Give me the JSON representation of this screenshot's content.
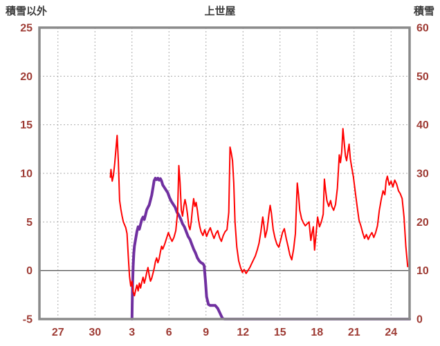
{
  "header": {
    "left_axis_title": "積雪以外",
    "title": "上世屋",
    "right_axis_title": "積雪"
  },
  "colors": {
    "background": "#ffffff",
    "temperature_line": "#ff0000",
    "snow_line": "#7030a0",
    "axis_label": "#9e3b34",
    "header_text": "#3b3b3b",
    "frame": "#8a8a8a",
    "grid": "#aaaaaa",
    "zero_line": "#5a5a5a"
  },
  "chart_data": {
    "type": "line",
    "title": "上世屋",
    "grid": true,
    "legend": "none",
    "left_axis": {
      "label": "積雪以外",
      "min": -5,
      "max": 25,
      "ticks": [
        -5,
        0,
        5,
        10,
        15,
        20,
        25
      ]
    },
    "right_axis": {
      "label": "積雪",
      "min": 0,
      "max": 60,
      "ticks": [
        0,
        10,
        20,
        30,
        40,
        50,
        60
      ]
    },
    "x_axis": {
      "range": [
        0,
        30
      ],
      "tick_positions": [
        1.5,
        4.5,
        7.5,
        10.5,
        13.5,
        16.5,
        19.5,
        22.5,
        25.5,
        28.5
      ],
      "tick_labels": [
        "27",
        "30",
        "3",
        "6",
        "9",
        "12",
        "15",
        "18",
        "21",
        "24"
      ]
    },
    "zero_line": 0,
    "series": [
      {
        "name": "積雪以外",
        "axis": "left",
        "color": "#ff0000",
        "width": 2,
        "points": [
          [
            5.75,
            9.6
          ],
          [
            5.8,
            10.4
          ],
          [
            5.9,
            9.2
          ],
          [
            6.0,
            9.8
          ],
          [
            6.1,
            11.0
          ],
          [
            6.2,
            12.5
          ],
          [
            6.3,
            13.9
          ],
          [
            6.4,
            11.2
          ],
          [
            6.5,
            7.2
          ],
          [
            6.6,
            6.3
          ],
          [
            6.7,
            5.6
          ],
          [
            6.8,
            5.0
          ],
          [
            6.9,
            4.7
          ],
          [
            7.0,
            4.4
          ],
          [
            7.1,
            3.8
          ],
          [
            7.2,
            1.5
          ],
          [
            7.3,
            -0.6
          ],
          [
            7.4,
            -1.6
          ],
          [
            7.5,
            -1.1
          ],
          [
            7.6,
            -2.2
          ],
          [
            7.7,
            -2.6
          ],
          [
            7.8,
            -2.0
          ],
          [
            7.9,
            -1.5
          ],
          [
            8.0,
            -2.1
          ],
          [
            8.1,
            -1.3
          ],
          [
            8.2,
            -1.8
          ],
          [
            8.3,
            -1.2
          ],
          [
            8.4,
            -0.7
          ],
          [
            8.5,
            -1.3
          ],
          [
            8.6,
            -0.8
          ],
          [
            8.7,
            -0.2
          ],
          [
            8.8,
            0.3
          ],
          [
            8.9,
            -0.5
          ],
          [
            9.0,
            -1.1
          ],
          [
            9.1,
            -0.8
          ],
          [
            9.2,
            -0.3
          ],
          [
            9.3,
            0.2
          ],
          [
            9.4,
            0.9
          ],
          [
            9.5,
            1.3
          ],
          [
            9.6,
            0.8
          ],
          [
            9.7,
            1.2
          ],
          [
            9.8,
            1.9
          ],
          [
            9.9,
            2.5
          ],
          [
            10.0,
            2.2
          ],
          [
            10.15,
            2.7
          ],
          [
            10.3,
            3.3
          ],
          [
            10.45,
            3.9
          ],
          [
            10.6,
            3.4
          ],
          [
            10.75,
            3.0
          ],
          [
            10.9,
            3.4
          ],
          [
            11.05,
            4.1
          ],
          [
            11.2,
            6.0
          ],
          [
            11.3,
            10.8
          ],
          [
            11.4,
            9.0
          ],
          [
            11.5,
            6.2
          ],
          [
            11.6,
            5.6
          ],
          [
            11.7,
            6.6
          ],
          [
            11.8,
            7.3
          ],
          [
            11.9,
            6.7
          ],
          [
            12.0,
            5.8
          ],
          [
            12.1,
            4.6
          ],
          [
            12.2,
            4.2
          ],
          [
            12.3,
            5.0
          ],
          [
            12.4,
            6.3
          ],
          [
            12.5,
            7.4
          ],
          [
            12.6,
            6.6
          ],
          [
            12.7,
            7.0
          ],
          [
            12.8,
            6.2
          ],
          [
            12.9,
            5.2
          ],
          [
            13.0,
            4.5
          ],
          [
            13.1,
            4.0
          ],
          [
            13.25,
            3.6
          ],
          [
            13.4,
            4.2
          ],
          [
            13.55,
            3.5
          ],
          [
            13.7,
            4.0
          ],
          [
            13.85,
            4.4
          ],
          [
            14.0,
            3.8
          ],
          [
            14.15,
            3.3
          ],
          [
            14.3,
            3.8
          ],
          [
            14.45,
            4.1
          ],
          [
            14.6,
            3.4
          ],
          [
            14.75,
            3.0
          ],
          [
            14.9,
            3.6
          ],
          [
            15.05,
            4.0
          ],
          [
            15.2,
            4.2
          ],
          [
            15.35,
            6.0
          ],
          [
            15.45,
            12.7
          ],
          [
            15.55,
            12.1
          ],
          [
            15.65,
            11.3
          ],
          [
            15.75,
            9.0
          ],
          [
            15.85,
            5.0
          ],
          [
            16.0,
            2.4
          ],
          [
            16.15,
            1.0
          ],
          [
            16.3,
            0.3
          ],
          [
            16.45,
            -0.2
          ],
          [
            16.6,
            0.1
          ],
          [
            16.75,
            -0.3
          ],
          [
            16.9,
            0.0
          ],
          [
            17.05,
            0.3
          ],
          [
            17.2,
            0.7
          ],
          [
            17.35,
            1.1
          ],
          [
            17.5,
            1.5
          ],
          [
            17.65,
            2.1
          ],
          [
            17.8,
            2.8
          ],
          [
            17.95,
            4.0
          ],
          [
            18.1,
            5.5
          ],
          [
            18.2,
            4.6
          ],
          [
            18.3,
            3.4
          ],
          [
            18.45,
            4.2
          ],
          [
            18.6,
            5.8
          ],
          [
            18.7,
            6.7
          ],
          [
            18.8,
            5.9
          ],
          [
            18.95,
            4.2
          ],
          [
            19.1,
            3.3
          ],
          [
            19.25,
            2.7
          ],
          [
            19.4,
            2.4
          ],
          [
            19.55,
            3.1
          ],
          [
            19.7,
            3.9
          ],
          [
            19.85,
            4.3
          ],
          [
            20.0,
            3.3
          ],
          [
            20.15,
            2.5
          ],
          [
            20.3,
            1.6
          ],
          [
            20.45,
            1.1
          ],
          [
            20.6,
            2.2
          ],
          [
            20.75,
            3.8
          ],
          [
            20.9,
            9.0
          ],
          [
            21.0,
            7.8
          ],
          [
            21.1,
            6.2
          ],
          [
            21.25,
            5.3
          ],
          [
            21.4,
            4.9
          ],
          [
            21.55,
            4.6
          ],
          [
            21.7,
            4.8
          ],
          [
            21.85,
            5.0
          ],
          [
            22.0,
            3.1
          ],
          [
            22.1,
            3.9
          ],
          [
            22.2,
            4.5
          ],
          [
            22.3,
            2.1
          ],
          [
            22.45,
            4.2
          ],
          [
            22.55,
            5.5
          ],
          [
            22.7,
            4.5
          ],
          [
            22.85,
            5.0
          ],
          [
            23.0,
            5.8
          ],
          [
            23.1,
            9.4
          ],
          [
            23.2,
            8.2
          ],
          [
            23.3,
            7.2
          ],
          [
            23.45,
            6.6
          ],
          [
            23.6,
            7.2
          ],
          [
            23.7,
            6.6
          ],
          [
            23.85,
            6.2
          ],
          [
            24.0,
            6.8
          ],
          [
            24.15,
            8.5
          ],
          [
            24.3,
            11.9
          ],
          [
            24.4,
            11.1
          ],
          [
            24.5,
            12.2
          ],
          [
            24.6,
            14.6
          ],
          [
            24.7,
            13.2
          ],
          [
            24.8,
            11.8
          ],
          [
            24.9,
            11.3
          ],
          [
            25.0,
            12.2
          ],
          [
            25.1,
            13.0
          ],
          [
            25.2,
            11.5
          ],
          [
            25.3,
            10.7
          ],
          [
            25.45,
            9.6
          ],
          [
            25.6,
            8.1
          ],
          [
            25.75,
            6.6
          ],
          [
            25.9,
            5.2
          ],
          [
            26.05,
            4.6
          ],
          [
            26.2,
            3.9
          ],
          [
            26.35,
            3.3
          ],
          [
            26.5,
            3.7
          ],
          [
            26.65,
            3.2
          ],
          [
            26.8,
            3.6
          ],
          [
            26.95,
            3.9
          ],
          [
            27.1,
            3.4
          ],
          [
            27.25,
            3.9
          ],
          [
            27.4,
            4.6
          ],
          [
            27.55,
            6.2
          ],
          [
            27.7,
            7.3
          ],
          [
            27.85,
            8.2
          ],
          [
            28.0,
            7.8
          ],
          [
            28.1,
            9.2
          ],
          [
            28.2,
            9.7
          ],
          [
            28.35,
            8.8
          ],
          [
            28.5,
            9.2
          ],
          [
            28.65,
            8.6
          ],
          [
            28.8,
            9.3
          ],
          [
            28.95,
            8.9
          ],
          [
            29.1,
            8.2
          ],
          [
            29.25,
            7.9
          ],
          [
            29.4,
            7.4
          ],
          [
            29.55,
            5.5
          ],
          [
            29.7,
            2.5
          ],
          [
            29.85,
            0.4
          ]
        ]
      },
      {
        "name": "積雪",
        "axis": "right",
        "color": "#7030a0",
        "width": 4,
        "points": [
          [
            7.5,
            0
          ],
          [
            7.52,
            3
          ],
          [
            7.55,
            7
          ],
          [
            7.6,
            11
          ],
          [
            7.65,
            13.5
          ],
          [
            7.7,
            15
          ],
          [
            7.8,
            16.5
          ],
          [
            7.9,
            18
          ],
          [
            8.0,
            19
          ],
          [
            8.1,
            18.5
          ],
          [
            8.2,
            19.5
          ],
          [
            8.3,
            20.5
          ],
          [
            8.4,
            21
          ],
          [
            8.5,
            20.5
          ],
          [
            8.6,
            21.5
          ],
          [
            8.7,
            22.5
          ],
          [
            8.8,
            23
          ],
          [
            8.9,
            23.5
          ],
          [
            9.0,
            24.5
          ],
          [
            9.1,
            25.5
          ],
          [
            9.2,
            27
          ],
          [
            9.3,
            28.5
          ],
          [
            9.4,
            29
          ],
          [
            9.5,
            28.7
          ],
          [
            9.6,
            29
          ],
          [
            9.7,
            28.6
          ],
          [
            9.8,
            28.9
          ],
          [
            9.9,
            28.4
          ],
          [
            10.0,
            27.6
          ],
          [
            10.1,
            27.2
          ],
          [
            10.25,
            26.6
          ],
          [
            10.4,
            26
          ],
          [
            10.55,
            25
          ],
          [
            10.7,
            24.2
          ],
          [
            10.85,
            23.6
          ],
          [
            11.0,
            23
          ],
          [
            11.15,
            22
          ],
          [
            11.3,
            21.4
          ],
          [
            11.45,
            20.6
          ],
          [
            11.6,
            19.6
          ],
          [
            11.75,
            19
          ],
          [
            11.9,
            18
          ],
          [
            12.05,
            17
          ],
          [
            12.2,
            16.4
          ],
          [
            12.35,
            15.4
          ],
          [
            12.5,
            14.4
          ],
          [
            12.65,
            13.6
          ],
          [
            12.8,
            12.6
          ],
          [
            12.95,
            12
          ],
          [
            13.1,
            11.6
          ],
          [
            13.25,
            11.4
          ],
          [
            13.35,
            11
          ],
          [
            13.45,
            8
          ],
          [
            13.55,
            4.6
          ],
          [
            13.7,
            3
          ],
          [
            13.85,
            2.8
          ],
          [
            14.05,
            2.8
          ],
          [
            14.25,
            2.8
          ],
          [
            14.45,
            2.2
          ],
          [
            14.6,
            1.4
          ],
          [
            14.75,
            0.6
          ],
          [
            14.85,
            0.1
          ],
          [
            15.0,
            0
          ],
          [
            30.0,
            0
          ]
        ]
      }
    ]
  }
}
